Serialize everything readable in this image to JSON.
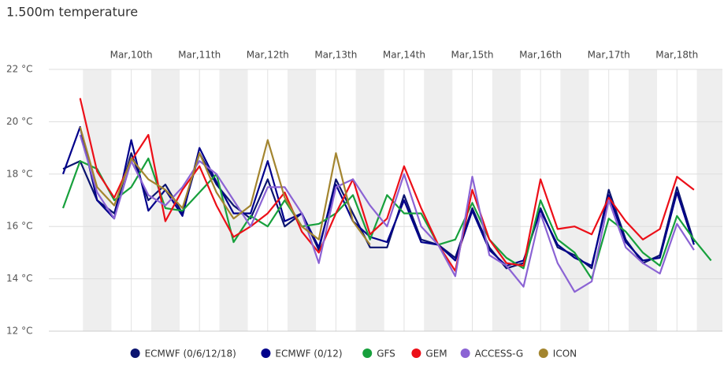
{
  "chart_data": {
    "type": "line",
    "title": "1.500m temperature",
    "x": [
      -12,
      -6,
      0,
      6,
      12,
      18,
      24,
      30,
      36,
      42,
      48,
      54,
      60,
      66,
      72,
      78,
      84,
      90,
      96,
      102,
      108,
      114,
      120,
      126,
      132,
      138,
      144,
      150,
      156,
      162,
      168,
      174,
      180,
      186,
      192,
      198,
      204,
      210,
      216
    ],
    "xlim": [
      -17,
      220
    ],
    "xticks": [
      {
        "value": 12,
        "label": "Mar,10th"
      },
      {
        "value": 36,
        "label": "Mar,11th"
      },
      {
        "value": 60,
        "label": "Mar,12th"
      },
      {
        "value": 84,
        "label": "Mar,13th"
      },
      {
        "value": 108,
        "label": "Mar,14th"
      },
      {
        "value": 132,
        "label": "Mar,15th"
      },
      {
        "value": 156,
        "label": "Mar,16th"
      },
      {
        "value": 180,
        "label": "Mar,17th"
      },
      {
        "value": 204,
        "label": "Mar,18th"
      }
    ],
    "ylim": [
      12,
      22
    ],
    "yticks": [
      {
        "value": 12,
        "label": "12 °C"
      },
      {
        "value": 14,
        "label": "14 °C"
      },
      {
        "value": 16,
        "label": "16 °C"
      },
      {
        "value": 18,
        "label": "18 °C"
      },
      {
        "value": 20,
        "label": "20 °C"
      },
      {
        "value": 22,
        "label": "22 °C"
      }
    ],
    "grid": true,
    "series": [
      {
        "name": "ECMWF (0/6/12/18)",
        "color": "#0b1470",
        "values": [
          18.2,
          18.5,
          17,
          16.5,
          18.8,
          17,
          17.6,
          16.5,
          18.8,
          17.6,
          16.8,
          16.3,
          17.8,
          16,
          16.5,
          15.1,
          17.8,
          16.5,
          15.2,
          15.2,
          17.2,
          15.5,
          15.3,
          14.8,
          16.7,
          15.2,
          14.4,
          14.6,
          16.7,
          15.2,
          14.9,
          14.4,
          17.4,
          15.5,
          14.6,
          14.9,
          17.5,
          15.4,
          null
        ]
      },
      {
        "name": "ECMWF (0/12)",
        "color": "#00008b",
        "values": [
          18,
          19.8,
          17,
          16.3,
          19.3,
          16.6,
          17.4,
          16.4,
          19,
          17.7,
          16.5,
          16.5,
          18.5,
          16.2,
          16.5,
          15.2,
          17.6,
          16.2,
          15.6,
          15.4,
          17,
          15.4,
          15.3,
          14.7,
          16.6,
          15.1,
          14.5,
          14.7,
          16.6,
          15.3,
          14.8,
          14.5,
          17.2,
          15.4,
          14.7,
          14.8,
          17.3,
          15.3,
          null
        ]
      },
      {
        "name": "GFS",
        "color": "#17a03c",
        "values": [
          16.7,
          18.5,
          18.2,
          17,
          17.5,
          18.6,
          16.7,
          16.6,
          17.3,
          18,
          15.4,
          16.4,
          16,
          17,
          16,
          16.1,
          16.5,
          17.2,
          15.5,
          17.2,
          16.5,
          16.5,
          15.3,
          15.5,
          16.9,
          15.5,
          14.8,
          14.4,
          17,
          15.5,
          15,
          14,
          16.3,
          15.8,
          15,
          14.5,
          16.4,
          15.5,
          14.7
        ]
      },
      {
        "name": "GEM",
        "color": "#ec0f18",
        "values": [
          null,
          20.9,
          18.1,
          17.1,
          18.5,
          19.5,
          16.2,
          17.4,
          18.3,
          16.8,
          15.6,
          16,
          16.5,
          17.3,
          15.8,
          15,
          16.5,
          17.8,
          15.7,
          16.3,
          18.3,
          16.7,
          15.3,
          14.3,
          17.4,
          15.5,
          14.6,
          14.5,
          17.8,
          15.9,
          16,
          15.7,
          17.1,
          16.2,
          15.5,
          15.9,
          17.9,
          17.4,
          null
        ]
      },
      {
        "name": "ACCESS-G",
        "color": "#8b63d4",
        "values": [
          null,
          19.5,
          17.3,
          16.3,
          18.5,
          17.2,
          16.8,
          17.5,
          18.5,
          18,
          17,
          16,
          17.5,
          17.5,
          16.5,
          14.6,
          17.5,
          17.8,
          16.8,
          16,
          18,
          16,
          15.3,
          14.1,
          17.9,
          14.9,
          14.5,
          13.7,
          16.5,
          14.6,
          13.5,
          13.9,
          17,
          15.2,
          14.6,
          14.2,
          16.1,
          15.1,
          null
        ]
      },
      {
        "name": "ICON",
        "color": "#a3852f",
        "values": [
          null,
          19.8,
          17.5,
          16.8,
          18.6,
          17.8,
          17.4,
          16.7,
          18.8,
          17.3,
          16.3,
          16.8,
          19.3,
          17.1,
          16,
          15.5,
          18.8,
          16.2,
          15.3,
          null,
          null,
          null,
          null,
          null,
          null,
          null,
          null,
          null,
          null,
          null,
          null,
          null,
          null,
          null,
          null,
          null,
          null,
          null,
          null
        ]
      }
    ]
  }
}
